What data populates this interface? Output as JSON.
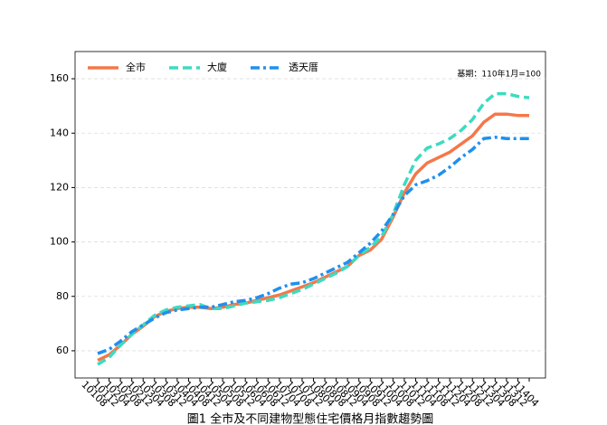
{
  "chart_data": {
    "type": "line",
    "title": "圖1 全市及不同建物型態住宅價格月指數趨勢圖",
    "annotation": "基期：110年1月=100",
    "categories": [
      "10108",
      "10112",
      "10204",
      "10208",
      "10212",
      "10304",
      "10308",
      "10312",
      "10404",
      "10408",
      "10412",
      "10504",
      "10508",
      "10512",
      "10604",
      "10608",
      "10612",
      "10704",
      "10708",
      "10712",
      "10804",
      "10808",
      "10812",
      "10904",
      "10908",
      "10912",
      "11004",
      "11008",
      "11012",
      "11104",
      "11108",
      "11112",
      "11204",
      "11208",
      "11212",
      "11304",
      "11308",
      "11312",
      "11404"
    ],
    "series": [
      {
        "name": "全市",
        "color": "#f4784a",
        "dash": "solid",
        "values": [
          56.5,
          58.5,
          62,
          66,
          69,
          72.5,
          74.5,
          75.5,
          76,
          76,
          75.5,
          76,
          77,
          77.5,
          78.5,
          79.5,
          80.5,
          82,
          83.5,
          85,
          87,
          89,
          91,
          95,
          97,
          101,
          109,
          118,
          125,
          129,
          131,
          133,
          136,
          139,
          144,
          147,
          147,
          146.5,
          146.5
        ]
      },
      {
        "name": "大廈",
        "color": "#3ddbc0",
        "dash": "dashed",
        "values": [
          55,
          57.5,
          62,
          66,
          69.5,
          73,
          75,
          76,
          76.5,
          77,
          75.5,
          75.5,
          76.5,
          77.5,
          78,
          78.5,
          79.5,
          81,
          82.5,
          84.5,
          86.5,
          88.5,
          91,
          95,
          98,
          102,
          110,
          121,
          130,
          134.5,
          136,
          138,
          141,
          145,
          151,
          154.5,
          154.5,
          153.5,
          153
        ]
      },
      {
        "name": "透天厝",
        "color": "#1e90f0",
        "dash": "dashdot",
        "values": [
          59,
          60.5,
          63.5,
          67,
          69.5,
          72,
          74,
          75,
          75.5,
          76,
          76,
          77,
          78,
          78.5,
          79.5,
          81,
          83,
          84.5,
          85,
          86.5,
          88.5,
          90.5,
          92.5,
          96,
          99.5,
          104,
          110,
          117,
          121,
          122.5,
          124.5,
          127.5,
          131,
          134,
          138,
          138.5,
          138,
          138,
          138
        ]
      }
    ],
    "ylim": [
      50,
      170
    ],
    "yticks": [
      60,
      80,
      100,
      120,
      140,
      160
    ],
    "grid": true,
    "legend": "upper left"
  }
}
